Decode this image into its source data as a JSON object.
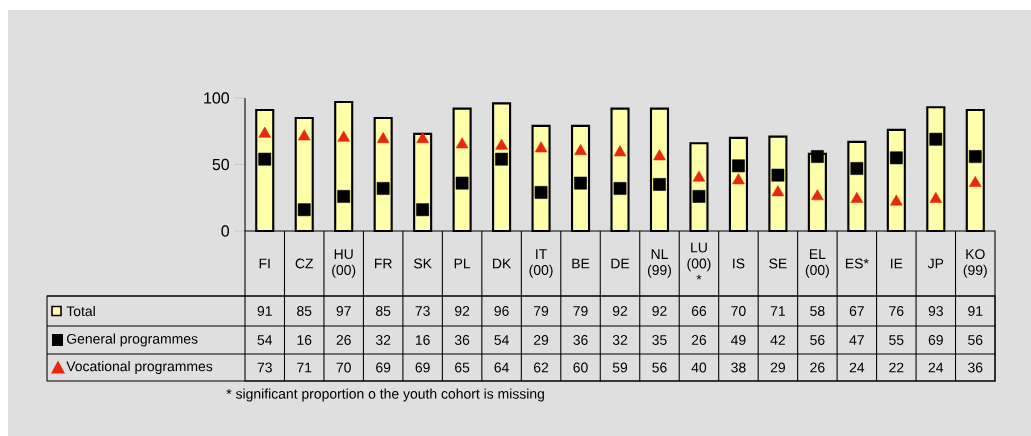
{
  "chart_data": {
    "type": "bar",
    "categories": [
      "FI",
      "CZ",
      "HU (00)",
      "FR",
      "SK",
      "PL",
      "DK",
      "IT (00)",
      "BE",
      "DE",
      "NL (99)",
      "LU (00) *",
      "IS",
      "SE",
      "EL (00)",
      "ES*",
      "IE",
      "JP",
      "KO (99)"
    ],
    "series": [
      {
        "name": "Total",
        "color": "#ffffaa",
        "values": [
          91,
          85,
          97,
          85,
          73,
          92,
          96,
          79,
          79,
          92,
          92,
          66,
          70,
          71,
          58,
          67,
          76,
          93,
          91
        ]
      },
      {
        "name": "General programmes",
        "type": "scatter",
        "marker": "square",
        "color": "#000000",
        "values": [
          54,
          16,
          26,
          32,
          16,
          36,
          54,
          29,
          36,
          32,
          35,
          26,
          49,
          42,
          56,
          47,
          55,
          69,
          56
        ]
      },
      {
        "name": "Vocational programmes",
        "type": "scatter",
        "marker": "triangle",
        "color": "#e8280c",
        "values": [
          73,
          71,
          70,
          69,
          69,
          65,
          64,
          62,
          60,
          59,
          56,
          40,
          38,
          29,
          26,
          24,
          22,
          24,
          36
        ]
      }
    ],
    "ylim": [
      0,
      100
    ],
    "yticks": [
      0,
      50,
      100
    ],
    "data_labels": true,
    "legend": "bottom left",
    "annotations": [
      "* significant proportion o the youth cohort is missing"
    ]
  }
}
